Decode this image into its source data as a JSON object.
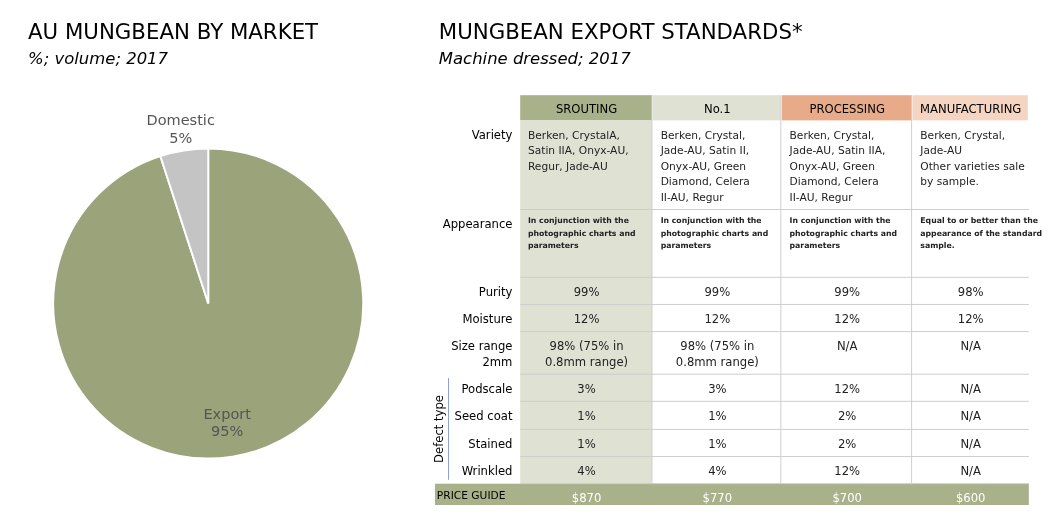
{
  "chart_data": [
    {
      "type": "pie",
      "title": "AU MUNGBEAN BY MARKET",
      "subtitle": "%; volume; 2017",
      "categories": [
        "Export",
        "Domestic"
      ],
      "values": [
        95,
        5
      ],
      "colors": [
        "#9aa37a",
        "#c4c4c4"
      ],
      "value_labels": [
        "95%",
        "5%"
      ]
    },
    {
      "type": "other",
      "title": "MUNGBEAN EXPORT STANDARDS*",
      "subtitle": "Machine dressed; 2017",
      "ylabel": "Defect type",
      "categories": [
        "SROUTING",
        "No.1",
        "PROCESSING",
        "MANUFACTURING"
      ],
      "colors": [
        "#a9b18a",
        "#dfe2d3",
        "#e8ab89",
        "#f5d5c2"
      ],
      "y_categories": [
        "Variety",
        "Appearance",
        "Purity",
        "Moisture",
        "Size range 2mm",
        "Podscale",
        "Seed coat",
        "Stained",
        "Wrinkled",
        "PRICE GUIDE"
      ],
      "cell_labels": [
        [
          "Berken, CrystalA, Satin IIA, Onyx-AU, Regur, Jade-AU",
          "Berken, Crystal, Jade-AU, Satin II, Onyx-AU, Green Diamond, Celera II-AU, Regur",
          "Berken, Crystal, Jade-AU, Satin IIA, Onyx-AU, Green Diamond, Celera II-AU, Regur",
          "Berken, Crystal, Jade-AU\nOther varieties sale by sample."
        ],
        [
          "In conjunction with the photographic charts and parameters",
          "In conjunction with the photographic charts and parameters",
          "In conjunction with the photographic charts and parameters",
          "Equal to or better than the appearance of the standard sample."
        ],
        [
          "99%",
          "99%",
          "99%",
          "98%"
        ],
        [
          "12%",
          "12%",
          "12%",
          "12%"
        ],
        [
          "98% (75% in 0.8mm range)",
          "98% (75% in 0.8mm range)",
          "N/A",
          "N/A"
        ],
        [
          "3%",
          "3%",
          "12%",
          "N/A"
        ],
        [
          "1%",
          "1%",
          "2%",
          "N/A"
        ],
        [
          "1%",
          "1%",
          "2%",
          "N/A"
        ],
        [
          "4%",
          "4%",
          "12%",
          "N/A"
        ],
        [
          "$870",
          "$770",
          "$700",
          "$600"
        ]
      ]
    }
  ]
}
